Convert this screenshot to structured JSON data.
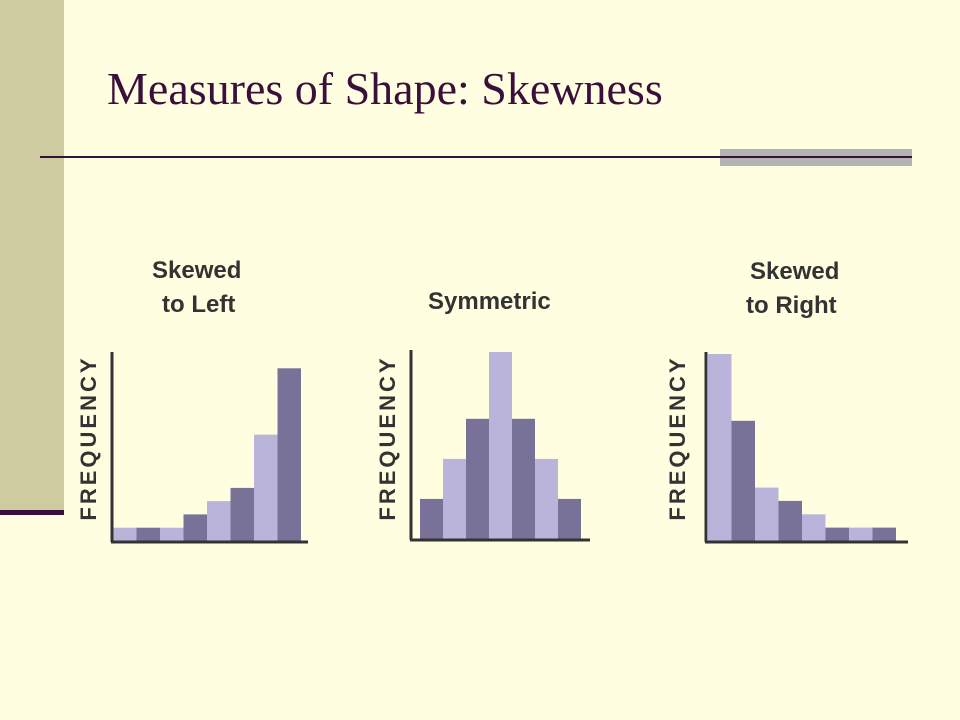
{
  "slide": {
    "title": "Measures of Shape: Skewness"
  },
  "colors": {
    "background": "#FFFEE0",
    "sidebar": "#CECBA0",
    "title": "#3A0F3C",
    "bar_light": "#BBB4DA",
    "bar_dark": "#787298",
    "axis": "#333333",
    "rule_accent": "#B3B3B3"
  },
  "chart_data": [
    {
      "type": "bar",
      "title_lines": [
        "Skewed",
        "to Left"
      ],
      "ylabel": "FREQUENCY",
      "xlabel": "",
      "values": [
        1,
        1,
        1,
        2,
        3,
        4,
        8,
        13
      ],
      "ylim": [
        0,
        14
      ],
      "bar_colors": [
        "light",
        "dark",
        "light",
        "dark",
        "light",
        "dark",
        "light",
        "dark"
      ]
    },
    {
      "type": "bar",
      "title_lines": [
        "Symmetric"
      ],
      "ylabel": "FREQUENCY",
      "xlabel": "",
      "values": [
        3,
        6,
        9,
        14,
        9,
        6,
        3
      ],
      "ylim": [
        0,
        14
      ],
      "bar_colors": [
        "dark",
        "light",
        "dark",
        "light",
        "dark",
        "light",
        "dark"
      ]
    },
    {
      "type": "bar",
      "title_lines": [
        "Skewed",
        "to Right"
      ],
      "ylabel": "FREQUENCY",
      "xlabel": "",
      "values": [
        14,
        9,
        4,
        3,
        2,
        1,
        1,
        1
      ],
      "ylim": [
        0,
        14
      ],
      "bar_colors": [
        "light",
        "dark",
        "light",
        "dark",
        "light",
        "dark",
        "light",
        "dark"
      ]
    }
  ]
}
